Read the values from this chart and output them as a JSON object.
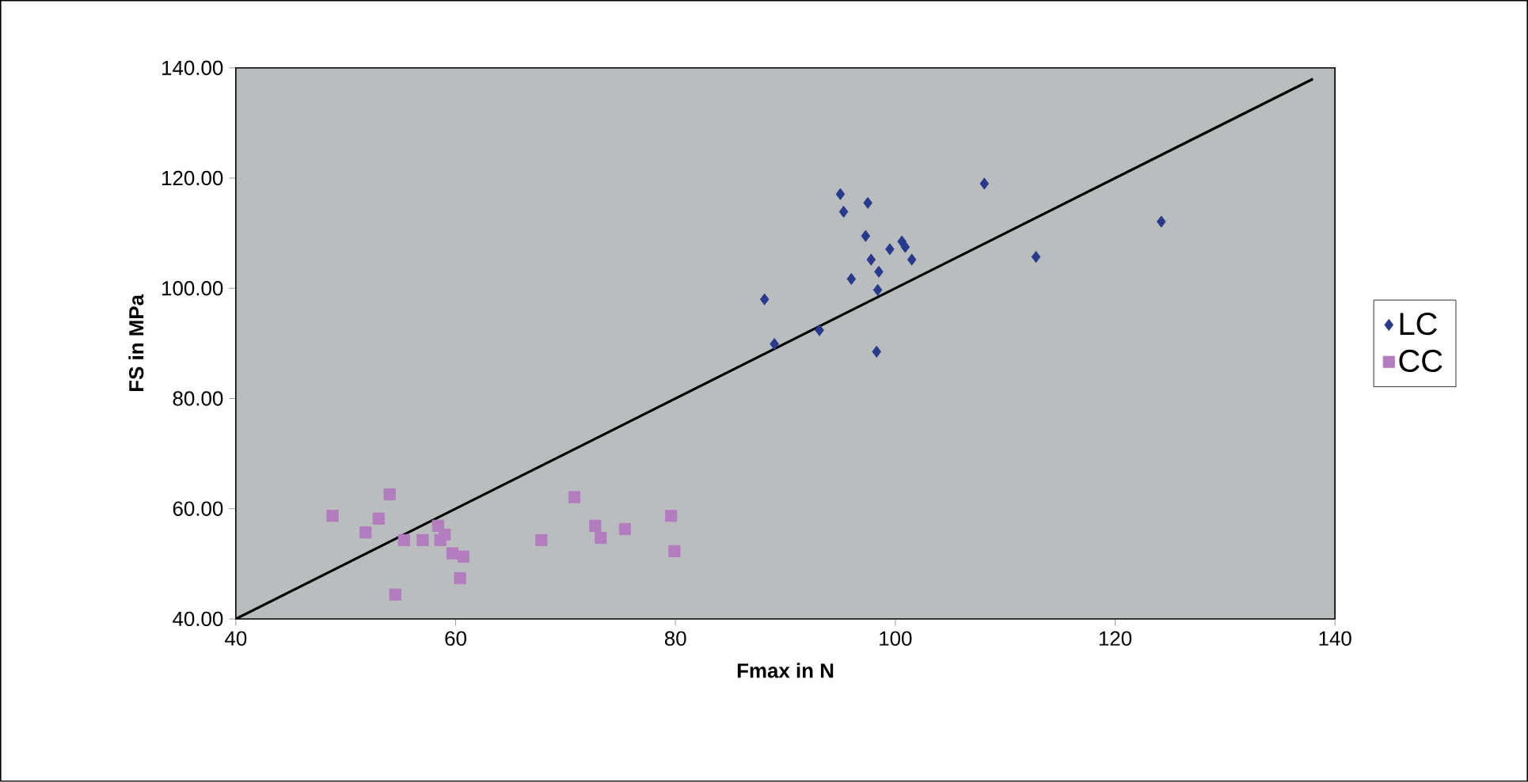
{
  "chart_data": {
    "type": "scatter",
    "xlabel": "Fmax in N",
    "ylabel": "FS in MPa",
    "xlim": [
      40,
      140
    ],
    "xticks": [
      40,
      60,
      80,
      100,
      120,
      140
    ],
    "ylim": [
      40,
      140
    ],
    "yticks": [
      {
        "value": 40,
        "label": "40.00"
      },
      {
        "value": 60,
        "label": "60.00"
      },
      {
        "value": 80,
        "label": "80.00"
      },
      {
        "value": 100,
        "label": "100.00"
      },
      {
        "value": 120,
        "label": "120.00"
      },
      {
        "value": 140,
        "label": "140.00"
      }
    ],
    "legend": "right",
    "grid": false,
    "series": [
      {
        "name": "LC",
        "color": "#283a8c",
        "marker": "diamond",
        "x": [
          95.0,
          95.3,
          97.5,
          108.1,
          97.3,
          99.5,
          100.6,
          100.9,
          101.5,
          97.8,
          98.5,
          96.0,
          98.4,
          112.8,
          88.1,
          89.0,
          93.1,
          98.3,
          124.2
        ],
        "values": [
          117.1,
          113.9,
          115.5,
          119.0,
          109.5,
          107.1,
          108.5,
          107.5,
          105.2,
          105.2,
          103.0,
          101.7,
          99.7,
          105.7,
          98.0,
          89.9,
          92.4,
          88.5,
          112.1
        ]
      },
      {
        "name": "CC",
        "color": "#b27cbe",
        "marker": "square",
        "x": [
          48.8,
          54.0,
          53.0,
          51.8,
          55.3,
          57.0,
          58.4,
          59.0,
          58.6,
          59.7,
          60.7,
          60.4,
          54.5,
          67.8,
          70.8,
          72.7,
          73.2,
          75.4,
          79.6,
          79.9
        ],
        "values": [
          58.7,
          62.6,
          58.2,
          55.7,
          54.3,
          54.3,
          56.9,
          55.3,
          54.3,
          51.9,
          51.3,
          47.4,
          44.4,
          54.3,
          62.1,
          56.9,
          54.7,
          56.3,
          58.7,
          52.3
        ]
      },
      {
        "type": "line",
        "color": "#000000",
        "marker": "none",
        "line_style": "solid",
        "x": [
          40,
          138
        ],
        "values": [
          40,
          138
        ]
      }
    ]
  }
}
